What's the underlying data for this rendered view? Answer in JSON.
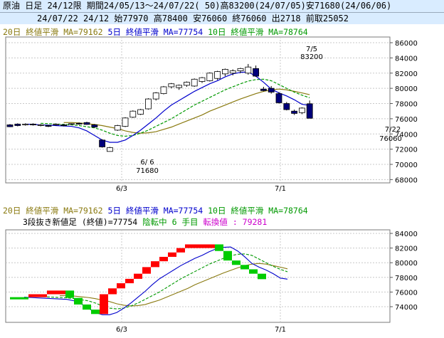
{
  "header": {
    "line1": "原油 日足 24/12限 期間24/05/13～24/07/22( 50)高83200(24/07/05)安71680(24/06/06)",
    "line2": "24/07/22 24/12 始77970 高78400 安76060 終76060 出2718 前取25052"
  },
  "legend": {
    "ma20": "20日 終値平滑 MA=79162",
    "ma5": "5日 終値平滑 MA=77754",
    "ma10": "10日 終値平滑 MA=78764"
  },
  "lower_info": {
    "method": "3段抜き新値足 (終値)=77754",
    "state": "陰転中",
    "steps": "6 手目",
    "reversal": "転換値 : 79281"
  },
  "annotations": {
    "high_date": "7/5",
    "high_value": "83200",
    "low_date": "6/ 6",
    "low_value": "71680",
    "last_date": "7/22",
    "last_value": "76060"
  },
  "colors": {
    "header_bg": "#d9ecff",
    "grid": "#c8c8c8",
    "ma5": "#0000cc",
    "ma10": "#009900",
    "ma20": "#8a7a10",
    "bear_candle": "#00007a",
    "bull_candle": "#ffffff",
    "bull_brick": "#ff0000",
    "bear_brick": "#00cc00",
    "high_label": "#cc0000",
    "low_label": "#009900",
    "reversal_text": "#cc00cc"
  },
  "chart_data": [
    {
      "type": "candlestick",
      "x_tick_labels": [
        "6/3",
        "7/1"
      ],
      "y_ticks": [
        68000,
        70000,
        72000,
        74000,
        76000,
        78000,
        80000,
        82000,
        84000,
        86000
      ],
      "ylim": [
        67500,
        87500
      ],
      "candles": [
        {
          "o": 75200,
          "h": 75300,
          "l": 74900,
          "c": 74950
        },
        {
          "o": 75300,
          "h": 75400,
          "l": 75000,
          "c": 75100
        },
        {
          "o": 75200,
          "h": 75400,
          "l": 75100,
          "c": 75300
        },
        {
          "o": 75300,
          "h": 75400,
          "l": 75100,
          "c": 75200
        },
        {
          "o": 75100,
          "h": 75300,
          "l": 75000,
          "c": 75200
        },
        {
          "o": 75100,
          "h": 75200,
          "l": 74900,
          "c": 75000
        },
        {
          "o": 75200,
          "h": 75400,
          "l": 75100,
          "c": 75300
        },
        {
          "o": 75200,
          "h": 75300,
          "l": 75000,
          "c": 75100
        },
        {
          "o": 75300,
          "h": 75400,
          "l": 75200,
          "c": 75350
        },
        {
          "o": 75400,
          "h": 75500,
          "l": 75200,
          "c": 75300
        },
        {
          "o": 75500,
          "h": 75600,
          "l": 75200,
          "c": 75250
        },
        {
          "o": 75200,
          "h": 75300,
          "l": 74800,
          "c": 74900
        },
        {
          "o": 73200,
          "h": 73300,
          "l": 72200,
          "c": 72300
        },
        {
          "o": 71700,
          "h": 72300,
          "l": 71680,
          "c": 72200
        },
        {
          "o": 74500,
          "h": 75200,
          "l": 74400,
          "c": 75100
        },
        {
          "o": 75000,
          "h": 76200,
          "l": 74900,
          "c": 76100
        },
        {
          "o": 76200,
          "h": 77100,
          "l": 76100,
          "c": 77000
        },
        {
          "o": 76600,
          "h": 77300,
          "l": 76500,
          "c": 77200
        },
        {
          "o": 77300,
          "h": 78700,
          "l": 77200,
          "c": 78600
        },
        {
          "o": 78600,
          "h": 79500,
          "l": 78400,
          "c": 79400
        },
        {
          "o": 79300,
          "h": 80300,
          "l": 79200,
          "c": 80200
        },
        {
          "o": 80200,
          "h": 80700,
          "l": 80000,
          "c": 80600
        },
        {
          "o": 80100,
          "h": 80500,
          "l": 79800,
          "c": 80400
        },
        {
          "o": 80400,
          "h": 80900,
          "l": 80200,
          "c": 80800
        },
        {
          "o": 80300,
          "h": 81300,
          "l": 80200,
          "c": 81200
        },
        {
          "o": 80900,
          "h": 81500,
          "l": 80700,
          "c": 81400
        },
        {
          "o": 81000,
          "h": 82100,
          "l": 80900,
          "c": 82000
        },
        {
          "o": 81300,
          "h": 82300,
          "l": 81100,
          "c": 82200
        },
        {
          "o": 81900,
          "h": 82600,
          "l": 81600,
          "c": 82500
        },
        {
          "o": 82000,
          "h": 82500,
          "l": 81700,
          "c": 82300
        },
        {
          "o": 82300,
          "h": 82700,
          "l": 82000,
          "c": 82600
        },
        {
          "o": 82000,
          "h": 83200,
          "l": 81800,
          "c": 82800
        },
        {
          "o": 82600,
          "h": 83000,
          "l": 81500,
          "c": 81600
        },
        {
          "o": 79900,
          "h": 80200,
          "l": 79600,
          "c": 79700
        },
        {
          "o": 80000,
          "h": 80300,
          "l": 79300,
          "c": 79500
        },
        {
          "o": 79300,
          "h": 79500,
          "l": 78000,
          "c": 78100
        },
        {
          "o": 78000,
          "h": 78200,
          "l": 77100,
          "c": 77200
        },
        {
          "o": 77000,
          "h": 77200,
          "l": 76500,
          "c": 76700
        },
        {
          "o": 76800,
          "h": 77500,
          "l": 76600,
          "c": 77400
        },
        {
          "o": 77970,
          "h": 78400,
          "l": 76060,
          "c": 76060
        }
      ],
      "ma5": [
        75300,
        75250,
        75200,
        75150,
        75100,
        75050,
        75000,
        74800,
        74400,
        73800,
        73200,
        72900,
        72900,
        73200,
        73800,
        74500,
        75300,
        76100,
        77000,
        77800,
        78400,
        79000,
        79600,
        80100,
        80600,
        81000,
        81500,
        81900,
        82100,
        82150,
        81600,
        80800,
        79900,
        79400,
        79000,
        78500,
        77900,
        77754
      ],
      "ma10": [
        75400,
        75350,
        75300,
        75250,
        75200,
        75100,
        74950,
        74800,
        74500,
        74100,
        73800,
        73700,
        73800,
        74100,
        74500,
        75000,
        75500,
        76000,
        76600,
        77200,
        77800,
        78300,
        78800,
        79300,
        79800,
        80200,
        80600,
        80950,
        81150,
        81200,
        81000,
        80500,
        80000,
        79500,
        79100,
        78764
      ],
      "ma20": [
        75500,
        75500,
        75450,
        75350,
        75250,
        75100,
        74900,
        74700,
        74400,
        74200,
        74100,
        74150,
        74300,
        74600,
        74900,
        75300,
        75700,
        76100,
        76500,
        77000,
        77400,
        77800,
        78200,
        78600,
        78950,
        79300,
        79600,
        79800,
        79900,
        79800,
        79600,
        79400,
        79162
      ]
    },
    {
      "type": "three-line-break",
      "x_tick_labels": [
        "6/3",
        "7/1"
      ],
      "y_ticks": [
        74000,
        76000,
        78000,
        80000,
        82000,
        84000
      ],
      "ylim": [
        72000,
        85800
      ],
      "bricks": [
        {
          "d": "dn",
          "lo": 75000,
          "hi": 75300
        },
        {
          "d": "up",
          "lo": 75300,
          "hi": 75700
        },
        {
          "d": "up",
          "lo": 75700,
          "hi": 76200
        },
        {
          "d": "dn",
          "lo": 75200,
          "hi": 76200
        },
        {
          "d": "dn",
          "lo": 74300,
          "hi": 75200
        },
        {
          "d": "dn",
          "lo": 73600,
          "hi": 74300
        },
        {
          "d": "dn",
          "lo": 73000,
          "hi": 73600
        },
        {
          "d": "up",
          "lo": 73000,
          "hi": 75700
        },
        {
          "d": "up",
          "lo": 75700,
          "hi": 76500
        },
        {
          "d": "up",
          "lo": 76500,
          "hi": 77200
        },
        {
          "d": "up",
          "lo": 77200,
          "hi": 77800
        },
        {
          "d": "up",
          "lo": 77800,
          "hi": 78500
        },
        {
          "d": "up",
          "lo": 78500,
          "hi": 79400
        },
        {
          "d": "up",
          "lo": 79400,
          "hi": 80200
        },
        {
          "d": "up",
          "lo": 80200,
          "hi": 80800
        },
        {
          "d": "up",
          "lo": 80800,
          "hi": 81400
        },
        {
          "d": "up",
          "lo": 81400,
          "hi": 82000
        },
        {
          "d": "up",
          "lo": 82000,
          "hi": 82500
        },
        {
          "d": "dn",
          "lo": 81600,
          "hi": 82500
        },
        {
          "d": "dn",
          "lo": 80300,
          "hi": 81600
        },
        {
          "d": "dn",
          "lo": 79700,
          "hi": 80300
        },
        {
          "d": "dn",
          "lo": 79100,
          "hi": 79700
        },
        {
          "d": "dn",
          "lo": 78500,
          "hi": 79100
        },
        {
          "d": "dn",
          "lo": 77754,
          "hi": 78500
        }
      ]
    }
  ]
}
